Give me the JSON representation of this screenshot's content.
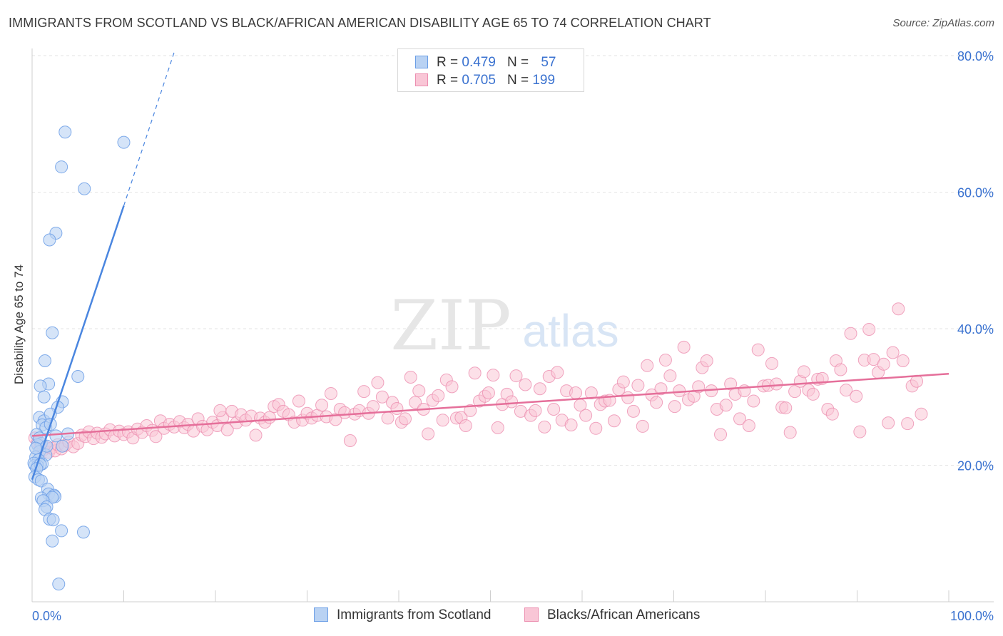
{
  "title": "IMMIGRANTS FROM SCOTLAND VS BLACK/AFRICAN AMERICAN DISABILITY AGE 65 TO 74 CORRELATION CHART",
  "source": "Source: ZipAtlas.com",
  "watermark": {
    "zip": "ZIP",
    "atlas": "atlas"
  },
  "legend": {
    "row1": {
      "r_label": "R =",
      "r_value": "0.479",
      "n_label": "N =",
      "n_value": "57"
    },
    "row2": {
      "r_label": "R =",
      "r_value": "0.705",
      "n_label": "N =",
      "n_value": "199"
    }
  },
  "bottom_legend": {
    "series1": "Immigrants from Scotland",
    "series2": "Blacks/African Americans"
  },
  "colors": {
    "blue": "#4a86e0",
    "blue_fill": "#b9d2f3",
    "pink": "#e56f9a",
    "pink_fill": "#f9c6d6",
    "axis_text": "#3a72d0"
  },
  "chart_data": {
    "type": "scatter",
    "title": "IMMIGRANTS FROM SCOTLAND VS BLACK/AFRICAN AMERICAN DISABILITY AGE 65 TO 74 CORRELATION CHART",
    "xlabel": "",
    "ylabel": "Disability Age 65 to 74",
    "xlim": [
      0,
      100
    ],
    "ylim": [
      0,
      82
    ],
    "x_ticks": [
      "0.0%",
      "100.0%"
    ],
    "y_ticks": [
      {
        "value": 20,
        "label": "20.0%"
      },
      {
        "value": 40,
        "label": "40.0%"
      },
      {
        "value": 60,
        "label": "60.0%"
      },
      {
        "value": 80,
        "label": "80.0%"
      }
    ],
    "legend_position": "top-center",
    "series": [
      {
        "name": "Immigrants from Scotland",
        "color": "#4a86e0",
        "points": [
          [
            3.6,
            68.8
          ],
          [
            10.0,
            67.3
          ],
          [
            3.2,
            63.7
          ],
          [
            5.7,
            60.5
          ],
          [
            2.6,
            54.0
          ],
          [
            1.9,
            53.0
          ],
          [
            2.2,
            39.4
          ],
          [
            1.4,
            35.3
          ],
          [
            1.8,
            31.9
          ],
          [
            0.9,
            31.6
          ],
          [
            5.0,
            33.0
          ],
          [
            3.3,
            29.3
          ],
          [
            1.3,
            30.0
          ],
          [
            2.8,
            28.5
          ],
          [
            0.8,
            27.0
          ],
          [
            1.3,
            26.5
          ],
          [
            2.0,
            27.5
          ],
          [
            1.1,
            25.9
          ],
          [
            1.5,
            25.5
          ],
          [
            3.9,
            24.6
          ],
          [
            2.6,
            24.3
          ],
          [
            0.5,
            24.5
          ],
          [
            1.0,
            23.2
          ],
          [
            0.6,
            23.0
          ],
          [
            3.3,
            22.8
          ],
          [
            0.8,
            22.0
          ],
          [
            1.5,
            21.5
          ],
          [
            0.4,
            21.2
          ],
          [
            0.7,
            20.8
          ],
          [
            1.1,
            20.2
          ],
          [
            0.3,
            20.0
          ],
          [
            0.6,
            19.9
          ],
          [
            0.2,
            20.3
          ],
          [
            0.9,
            20.1
          ],
          [
            0.5,
            19.5
          ],
          [
            0.3,
            18.3
          ],
          [
            0.7,
            17.9
          ],
          [
            1.0,
            17.7
          ],
          [
            1.7,
            16.5
          ],
          [
            1.8,
            15.8
          ],
          [
            2.4,
            15.6
          ],
          [
            2.5,
            15.4
          ],
          [
            1.0,
            15.2
          ],
          [
            2.2,
            15.3
          ],
          [
            1.2,
            14.8
          ],
          [
            1.6,
            13.9
          ],
          [
            1.4,
            13.5
          ],
          [
            1.9,
            12.1
          ],
          [
            2.3,
            12.0
          ],
          [
            3.2,
            10.4
          ],
          [
            5.6,
            10.2
          ],
          [
            2.2,
            8.9
          ],
          [
            2.9,
            2.6
          ],
          [
            0.8,
            24.0
          ],
          [
            1.6,
            22.8
          ],
          [
            2.0,
            26.0
          ],
          [
            0.4,
            22.5
          ]
        ],
        "trend": {
          "x0": 0,
          "y0": 17.9,
          "x1": 10.0,
          "y1": 58.0,
          "dash_to_x": 15.5,
          "dash_to_y": 80.5
        }
      },
      {
        "name": "Blacks/African Americans",
        "color": "#e56f9a",
        "points": [
          [
            0.3,
            24.0
          ],
          [
            0.6,
            23.3
          ],
          [
            0.9,
            22.8
          ],
          [
            1.2,
            22.2
          ],
          [
            1.5,
            22.6
          ],
          [
            1.8,
            21.9
          ],
          [
            2.1,
            22.5
          ],
          [
            2.5,
            22.1
          ],
          [
            2.8,
            23.0
          ],
          [
            3.2,
            22.4
          ],
          [
            3.6,
            22.9
          ],
          [
            4.0,
            23.4
          ],
          [
            4.5,
            22.7
          ],
          [
            5.0,
            23.2
          ],
          [
            5.4,
            24.4
          ],
          [
            5.8,
            24.2
          ],
          [
            6.2,
            24.9
          ],
          [
            6.7,
            23.9
          ],
          [
            7.1,
            24.7
          ],
          [
            7.6,
            24.1
          ],
          [
            8.0,
            24.6
          ],
          [
            8.5,
            25.2
          ],
          [
            9.0,
            24.3
          ],
          [
            9.5,
            25.0
          ],
          [
            10.0,
            24.5
          ],
          [
            10.5,
            24.9
          ],
          [
            11.0,
            24.0
          ],
          [
            11.5,
            25.3
          ],
          [
            12.0,
            24.8
          ],
          [
            12.5,
            25.8
          ],
          [
            13.1,
            25.1
          ],
          [
            13.5,
            24.2
          ],
          [
            14.0,
            26.5
          ],
          [
            14.4,
            25.4
          ],
          [
            15.0,
            26.0
          ],
          [
            15.5,
            25.6
          ],
          [
            16.1,
            26.4
          ],
          [
            16.6,
            25.5
          ],
          [
            17.0,
            26.0
          ],
          [
            17.6,
            25.0
          ],
          [
            18.1,
            26.8
          ],
          [
            18.6,
            25.7
          ],
          [
            19.1,
            25.2
          ],
          [
            19.7,
            26.3
          ],
          [
            20.2,
            25.8
          ],
          [
            20.8,
            27.0
          ],
          [
            21.3,
            25.2
          ],
          [
            21.8,
            27.9
          ],
          [
            22.3,
            26.2
          ],
          [
            22.8,
            27.4
          ],
          [
            23.3,
            26.6
          ],
          [
            23.9,
            27.2
          ],
          [
            24.4,
            24.4
          ],
          [
            24.9,
            26.9
          ],
          [
            25.4,
            26.3
          ],
          [
            25.9,
            27.0
          ],
          [
            26.4,
            28.6
          ],
          [
            26.9,
            28.9
          ],
          [
            27.4,
            27.9
          ],
          [
            28.0,
            27.4
          ],
          [
            28.6,
            26.3
          ],
          [
            29.1,
            29.4
          ],
          [
            29.5,
            26.6
          ],
          [
            30.0,
            27.6
          ],
          [
            30.5,
            26.9
          ],
          [
            31.1,
            27.3
          ],
          [
            31.6,
            28.8
          ],
          [
            32.1,
            27.1
          ],
          [
            32.6,
            30.5
          ],
          [
            33.1,
            26.7
          ],
          [
            33.6,
            28.2
          ],
          [
            34.1,
            27.7
          ],
          [
            34.7,
            23.6
          ],
          [
            35.2,
            27.5
          ],
          [
            35.7,
            28.0
          ],
          [
            36.2,
            30.8
          ],
          [
            36.7,
            27.6
          ],
          [
            37.2,
            28.6
          ],
          [
            37.7,
            32.1
          ],
          [
            38.2,
            30.0
          ],
          [
            38.8,
            26.9
          ],
          [
            39.3,
            29.2
          ],
          [
            39.8,
            28.3
          ],
          [
            40.3,
            26.3
          ],
          [
            40.7,
            26.8
          ],
          [
            41.3,
            32.9
          ],
          [
            41.8,
            29.2
          ],
          [
            42.2,
            30.9
          ],
          [
            42.7,
            28.2
          ],
          [
            43.2,
            24.6
          ],
          [
            43.7,
            29.5
          ],
          [
            44.3,
            30.2
          ],
          [
            44.8,
            26.6
          ],
          [
            45.2,
            32.5
          ],
          [
            45.8,
            31.5
          ],
          [
            46.3,
            26.9
          ],
          [
            46.8,
            27.0
          ],
          [
            47.3,
            25.8
          ],
          [
            47.8,
            28.0
          ],
          [
            48.3,
            33.5
          ],
          [
            48.8,
            29.4
          ],
          [
            49.4,
            30.1
          ],
          [
            49.8,
            30.6
          ],
          [
            50.3,
            33.2
          ],
          [
            50.8,
            25.5
          ],
          [
            51.3,
            28.9
          ],
          [
            51.8,
            30.4
          ],
          [
            52.3,
            29.3
          ],
          [
            52.8,
            33.1
          ],
          [
            53.3,
            27.9
          ],
          [
            53.8,
            31.8
          ],
          [
            54.4,
            27.3
          ],
          [
            54.9,
            28.0
          ],
          [
            55.4,
            31.2
          ],
          [
            55.9,
            25.6
          ],
          [
            56.4,
            33.0
          ],
          [
            56.9,
            28.2
          ],
          [
            57.3,
            33.6
          ],
          [
            57.8,
            26.6
          ],
          [
            58.3,
            30.9
          ],
          [
            58.8,
            25.9
          ],
          [
            59.3,
            30.6
          ],
          [
            59.8,
            28.8
          ],
          [
            60.4,
            27.3
          ],
          [
            61.0,
            30.6
          ],
          [
            61.5,
            25.4
          ],
          [
            62.0,
            28.9
          ],
          [
            62.5,
            29.4
          ],
          [
            63.0,
            29.5
          ],
          [
            63.5,
            26.5
          ],
          [
            64.0,
            31.1
          ],
          [
            64.5,
            32.2
          ],
          [
            65.0,
            29.9
          ],
          [
            65.6,
            27.9
          ],
          [
            66.1,
            31.7
          ],
          [
            66.6,
            25.7
          ],
          [
            67.1,
            34.6
          ],
          [
            67.6,
            30.3
          ],
          [
            68.1,
            29.2
          ],
          [
            68.6,
            31.2
          ],
          [
            69.1,
            35.4
          ],
          [
            69.6,
            33.1
          ],
          [
            70.1,
            28.6
          ],
          [
            70.6,
            30.9
          ],
          [
            71.1,
            37.3
          ],
          [
            71.6,
            29.6
          ],
          [
            72.2,
            30.1
          ],
          [
            72.7,
            31.5
          ],
          [
            73.1,
            34.3
          ],
          [
            73.6,
            35.3
          ],
          [
            74.1,
            30.9
          ],
          [
            74.7,
            28.2
          ],
          [
            75.1,
            24.5
          ],
          [
            75.7,
            28.8
          ],
          [
            76.2,
            31.9
          ],
          [
            76.7,
            30.4
          ],
          [
            77.2,
            26.8
          ],
          [
            77.7,
            30.9
          ],
          [
            78.2,
            25.8
          ],
          [
            78.7,
            29.4
          ],
          [
            79.2,
            36.9
          ],
          [
            79.8,
            31.6
          ],
          [
            80.3,
            31.7
          ],
          [
            80.7,
            34.9
          ],
          [
            81.2,
            31.9
          ],
          [
            81.8,
            28.5
          ],
          [
            82.2,
            28.4
          ],
          [
            82.7,
            24.8
          ],
          [
            83.2,
            30.8
          ],
          [
            83.8,
            32.3
          ],
          [
            84.2,
            33.7
          ],
          [
            84.7,
            31.0
          ],
          [
            85.2,
            30.4
          ],
          [
            85.7,
            32.6
          ],
          [
            86.2,
            32.7
          ],
          [
            86.8,
            28.2
          ],
          [
            87.3,
            27.5
          ],
          [
            87.7,
            35.3
          ],
          [
            88.2,
            34.0
          ],
          [
            88.8,
            31.0
          ],
          [
            89.3,
            39.3
          ],
          [
            89.9,
            30.1
          ],
          [
            90.3,
            24.9
          ],
          [
            90.8,
            35.4
          ],
          [
            91.3,
            39.9
          ],
          [
            91.8,
            35.5
          ],
          [
            92.3,
            33.6
          ],
          [
            92.9,
            34.8
          ],
          [
            93.4,
            26.2
          ],
          [
            93.9,
            36.5
          ],
          [
            94.5,
            42.9
          ],
          [
            95.0,
            35.3
          ],
          [
            95.5,
            26.1
          ],
          [
            96.0,
            31.6
          ],
          [
            96.5,
            32.3
          ],
          [
            97.0,
            27.5
          ],
          [
            20.5,
            28.0
          ]
        ],
        "trend": {
          "x0": 0,
          "y0": 24.3,
          "x1": 100,
          "y1": 33.4
        }
      }
    ]
  }
}
